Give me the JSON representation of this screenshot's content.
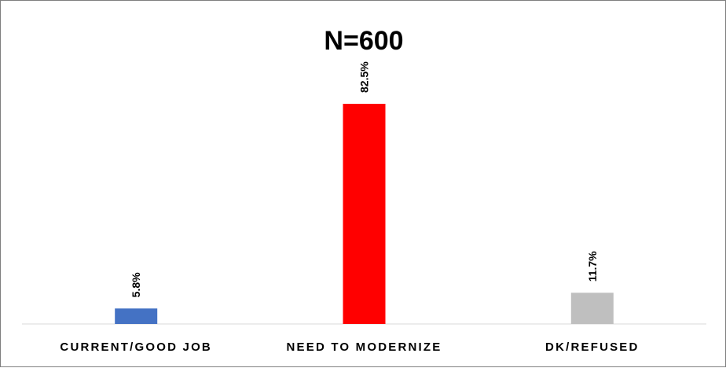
{
  "chart_data": {
    "type": "bar",
    "title": "N=600",
    "categories": [
      "CURRENT/GOOD JOB",
      "NEED TO MODERNIZE",
      "DK/REFUSED"
    ],
    "values": [
      5.8,
      82.5,
      11.7
    ],
    "data_labels": [
      "5.8%",
      "82.5%",
      "11.7%"
    ],
    "unit": "%",
    "colors": [
      "#4472C4",
      "#FF0000",
      "#BFBFBF"
    ],
    "ylim": [
      0,
      100
    ],
    "grid": false,
    "legend": "none",
    "xlabel": "",
    "ylabel": ""
  }
}
